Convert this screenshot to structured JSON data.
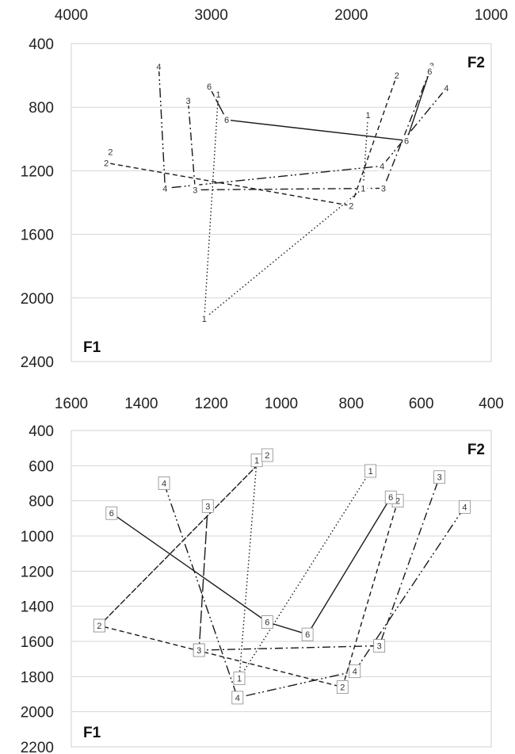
{
  "chart_data": [
    {
      "type": "line",
      "title": "",
      "xlabel": "F2",
      "ylabel": "F1",
      "xlim": [
        4000,
        1000
      ],
      "ylim": [
        400,
        2400
      ],
      "x_ticks": [
        "4000",
        "3000",
        "2000",
        "1000"
      ],
      "x_tick_values": [
        4000,
        3000,
        2000,
        1000
      ],
      "y_ticks": [
        "400",
        "800",
        "1200",
        "1600",
        "2000",
        "2400"
      ],
      "y_tick_values": [
        400,
        800,
        1200,
        1600,
        2000,
        2400
      ],
      "grid": "horizontal",
      "label_boxes": false,
      "series": [
        {
          "dash": "dot",
          "points": [
            {
              "label": "1",
              "x": 1880,
              "y": 850
            },
            {
              "label": "1",
              "x": 1915,
              "y": 1310
            },
            {
              "label": "1",
              "x": 3050,
              "y": 2130
            },
            {
              "label": "1",
              "x": 2950,
              "y": 720
            }
          ]
        },
        {
          "dash": "dash",
          "points": [
            {
              "label": "2",
              "x": 3720,
              "y": 1080
            },
            {
              "label": "2",
              "x": 3750,
              "y": 1150
            },
            {
              "label": "2",
              "x": 2000,
              "y": 1420
            },
            {
              "label": "2",
              "x": 1675,
              "y": 600
            }
          ]
        },
        {
          "dash": "dashdot",
          "points": [
            {
              "label": "3",
              "x": 3165,
              "y": 760
            },
            {
              "label": "3",
              "x": 3115,
              "y": 1320
            },
            {
              "label": "3",
              "x": 1770,
              "y": 1310
            },
            {
              "label": "3",
              "x": 1425,
              "y": 540
            }
          ]
        },
        {
          "dash": "dashdotdot",
          "points": [
            {
              "label": "4",
              "x": 3375,
              "y": 545
            },
            {
              "label": "4",
              "x": 3330,
              "y": 1310
            },
            {
              "label": "4",
              "x": 1780,
              "y": 1170
            },
            {
              "label": "4",
              "x": 1320,
              "y": 680
            }
          ]
        },
        {
          "dash": "solid",
          "points": [
            {
              "label": "6",
              "x": 3015,
              "y": 670
            },
            {
              "label": "6",
              "x": 2890,
              "y": 880
            },
            {
              "label": "6",
              "x": 1605,
              "y": 1010
            },
            {
              "label": "6",
              "x": 1440,
              "y": 575
            }
          ]
        }
      ]
    },
    {
      "type": "line",
      "title": "",
      "xlabel": "F2",
      "ylabel": "F1",
      "xlim": [
        1600,
        400
      ],
      "ylim": [
        400,
        2200
      ],
      "x_ticks": [
        "1600",
        "1400",
        "1200",
        "1000",
        "800",
        "600",
        "400"
      ],
      "x_tick_values": [
        1600,
        1400,
        1200,
        1000,
        800,
        600,
        400
      ],
      "y_ticks": [
        "400",
        "600",
        "800",
        "1000",
        "1200",
        "1400",
        "1600",
        "1800",
        "2000",
        "2200"
      ],
      "y_tick_values": [
        400,
        600,
        800,
        1000,
        1200,
        1400,
        1600,
        1800,
        2000,
        2200
      ],
      "grid": "horizontal",
      "label_boxes": true,
      "series": [
        {
          "dash": "dot",
          "points": [
            {
              "label": "1",
              "x": 1070,
              "y": 570
            },
            {
              "label": "1",
              "x": 1120,
              "y": 1810
            },
            {
              "label": "1",
              "x": 745,
              "y": 630
            }
          ]
        },
        {
          "dash": "dash",
          "points": [
            {
              "label": "2",
              "x": 1520,
              "y": 1510
            },
            {
              "label": "2",
              "x": 1040,
              "y": 540
            },
            {
              "label": "2",
              "x": 1520,
              "y": 1510
            },
            {
              "label": "2",
              "x": 825,
              "y": 1860
            },
            {
              "label": "2",
              "x": 667,
              "y": 800
            }
          ]
        },
        {
          "dash": "dashdot",
          "points": [
            {
              "label": "3",
              "x": 1235,
              "y": 1650
            },
            {
              "label": "3",
              "x": 1210,
              "y": 830
            },
            {
              "label": "3",
              "x": 1235,
              "y": 1650
            },
            {
              "label": "3",
              "x": 720,
              "y": 1625
            },
            {
              "label": "3",
              "x": 548,
              "y": 665
            }
          ]
        },
        {
          "dash": "dashdotdot",
          "points": [
            {
              "label": "4",
              "x": 1335,
              "y": 700
            },
            {
              "label": "4",
              "x": 1125,
              "y": 1920
            },
            {
              "label": "4",
              "x": 790,
              "y": 1770
            },
            {
              "label": "4",
              "x": 476,
              "y": 835
            }
          ]
        },
        {
          "dash": "solid",
          "points": [
            {
              "label": "6",
              "x": 1485,
              "y": 870
            },
            {
              "label": "6",
              "x": 1040,
              "y": 1490
            },
            {
              "label": "6",
              "x": 925,
              "y": 1560
            },
            {
              "label": "6",
              "x": 687,
              "y": 780
            }
          ]
        }
      ]
    }
  ]
}
